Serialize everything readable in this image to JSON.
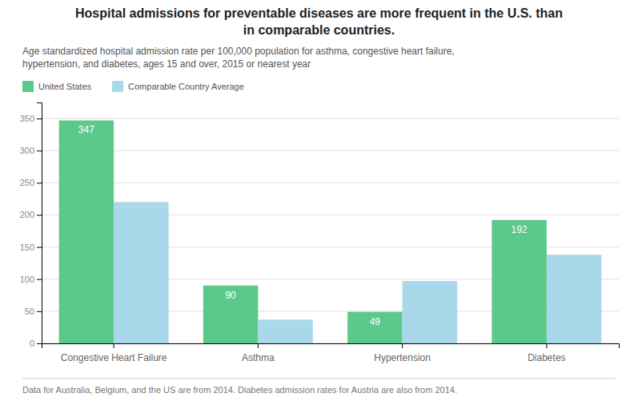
{
  "chart_data": {
    "type": "bar",
    "title": [
      "Hospital admissions for preventable diseases are more frequent in the U.S. than",
      "in comparable countries."
    ],
    "subtitle": [
      "Age standardized hospital admission rate per 100,000 population for asthma, congestive heart failure,",
      "hypertension, and diabetes, ages 15 and over, 2015 or nearest year"
    ],
    "footnote": "Data for Australia, Belgium, and the US are from 2014. Diabetes admission rates for Austria are also from 2014.",
    "categories": [
      "Congestive Heart Failure",
      "Asthma",
      "Hypertension",
      "Diabetes"
    ],
    "series": [
      {
        "name": "United States",
        "color": "#5BC98A",
        "values": [
          347,
          90,
          49,
          192
        ],
        "data_labels": true
      },
      {
        "name": "Comparable Country Average",
        "color": "#A8D8EA",
        "values": [
          220,
          37,
          97,
          138
        ],
        "data_labels": false
      }
    ],
    "ylim": [
      0,
      375
    ],
    "yticks": [
      0,
      50,
      100,
      150,
      200,
      250,
      300,
      350
    ],
    "grid": true,
    "legend": "top-left"
  }
}
